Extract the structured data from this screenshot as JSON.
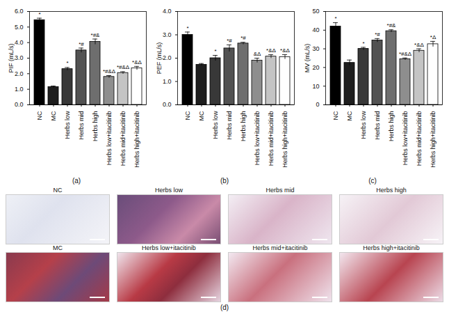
{
  "chart_data": [
    {
      "type": "bar",
      "panel_label": "(a)",
      "y_label": "PIF (mL/s)",
      "categories": [
        "NC",
        "MC",
        "Herbs low",
        "Herbs mid",
        "Herbs high",
        "Herbs low+itacitinib",
        "Herbs mid+itacitinib",
        "Herbs high+itacitinib"
      ],
      "values": [
        5.45,
        1.15,
        2.3,
        3.5,
        4.05,
        1.8,
        2.05,
        2.35
      ],
      "errors": [
        0.12,
        0.06,
        0.1,
        0.15,
        0.18,
        0.08,
        0.08,
        0.12
      ],
      "annotations": [
        "*",
        null,
        "*",
        "*#",
        "*#&",
        "*#&Δ",
        "*#&Δ",
        "*&Δ"
      ],
      "colors": [
        "#000000",
        "#1e1e1e",
        "#383838",
        "#525252",
        "#6e6e6e",
        "#8e8e8e",
        "#c4c4c4",
        "#ffffff"
      ],
      "ylim": [
        0,
        6
      ],
      "yticks": [
        0,
        1,
        2,
        3,
        4,
        5,
        6
      ]
    },
    {
      "type": "bar",
      "panel_label": "(b)",
      "y_label": "PEF (mL/s)",
      "categories": [
        "NC",
        "MC",
        "Herbs low",
        "Herbs mid",
        "Herbs high",
        "Herbs low+itacitinib",
        "Herbs mid+itacitinib",
        "Herbs high+itacitinib"
      ],
      "values": [
        3.0,
        1.72,
        2.0,
        2.42,
        2.63,
        1.9,
        2.07,
        2.05
      ],
      "errors": [
        0.12,
        0.05,
        0.12,
        0.15,
        0.05,
        0.1,
        0.08,
        0.1
      ],
      "annotations": [
        "*",
        null,
        "*",
        "*#",
        "*#",
        "&Δ",
        "*&Δ",
        "*&Δ"
      ],
      "colors": [
        "#000000",
        "#1e1e1e",
        "#383838",
        "#525252",
        "#6e6e6e",
        "#8e8e8e",
        "#c4c4c4",
        "#ffffff"
      ],
      "ylim": [
        0,
        4
      ],
      "yticks": [
        0,
        1,
        2,
        3,
        4
      ]
    },
    {
      "type": "bar",
      "panel_label": "(c)",
      "y_label": "MV (mL/s)",
      "categories": [
        "NC",
        "MC",
        "Herbs low",
        "Herbs mid",
        "Herbs high",
        "Herbs low+itacitinib",
        "Herbs mid+itacitinib",
        "Herbs high+itacitinib"
      ],
      "values": [
        42,
        22.5,
        30,
        34.5,
        39.5,
        24.5,
        29,
        32.5
      ],
      "errors": [
        2,
        1.5,
        0.8,
        1,
        0.7,
        0.6,
        1,
        1.5
      ],
      "annotations": [
        "*",
        null,
        "*",
        "*#",
        "*#&",
        "*#&Δ",
        "*&Δ",
        "*Δ"
      ],
      "colors": [
        "#000000",
        "#1e1e1e",
        "#383838",
        "#525252",
        "#6e6e6e",
        "#8e8e8e",
        "#c4c4c4",
        "#ffffff"
      ],
      "ylim": [
        0,
        50
      ],
      "yticks": [
        0,
        10,
        20,
        30,
        40,
        50
      ]
    }
  ],
  "image_panel": {
    "panel_label": "(d)",
    "rows": [
      [
        "NC",
        "Herbs low",
        "Herbs mid",
        "Herbs high"
      ],
      [
        "MC",
        "Herbs low+itacitinib",
        "Herbs mid+itacitinib",
        "Herbs high+itacitinib"
      ]
    ]
  }
}
